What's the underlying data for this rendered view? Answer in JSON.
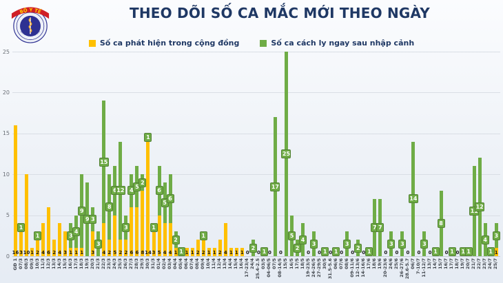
{
  "header": {
    "logo": {
      "banner_text": "BỘ Y TẾ",
      "ring_text": "MINISTRY OF HEALTH"
    }
  },
  "legend": [
    {
      "label": "Số ca phát hiện trong cộng đồng",
      "color": "#FFC000"
    },
    {
      "label": "Số ca cách ly ngay sau nhập cảnh",
      "color": "#6FAC46"
    }
  ],
  "chart_data": {
    "type": "bar",
    "stacked": true,
    "title": "THEO DÕI SỐ CA MẮC MỚI THEO NGÀY",
    "xlabel": "",
    "ylabel": "",
    "ylim": [
      0,
      25
    ],
    "yticks": [
      0,
      5,
      10,
      15,
      20,
      25
    ],
    "grid": true,
    "legend_position": "top",
    "categories": [
      "GĐ 1",
      "07/3",
      "08/3",
      "09/3",
      "10/3",
      "11/3",
      "12/3",
      "13/3",
      "14/3",
      "15/3",
      "16/3",
      "17/3",
      "18/3",
      "19/3",
      "20/3",
      "21/3",
      "22/3",
      "23/3",
      "24/3",
      "25/3",
      "26/3",
      "27/3",
      "28/3",
      "29/3",
      "30/3",
      "31/3",
      "01/4",
      "02/4",
      "03/4",
      "04/4",
      "05/4",
      "06/4",
      "07/4",
      "08/4",
      "09/4",
      "10/4",
      "11/4",
      "12/4",
      "13/4",
      "14/4",
      "15/4",
      "16/4",
      "17-23/4",
      "24/4",
      "25.4-2.5",
      "03/5",
      "04-06/5",
      "07/5",
      "08-14/5",
      "15/5",
      "16/5",
      "17/5",
      "18/5",
      "19-23/5",
      "24-26/5",
      "27-29/5",
      "30/5",
      "31.5-5.6",
      "06/6",
      "07/6",
      "08/6",
      "09-11/6",
      "12-13/6",
      "14-16/6",
      "17/6",
      "18/6",
      "19/6",
      "20-23/6",
      "24/6",
      "25/6",
      "26-27/6",
      "28.6-5.7",
      "06/7",
      "7-10/7",
      "11-12/7",
      "13/7",
      "14/7",
      "15/7",
      "16/7",
      "17/7",
      "18/7",
      "19/7",
      "20/7",
      "21/7",
      "22/7",
      "23/7",
      "24/7",
      "25/7"
    ],
    "series": [
      {
        "name": "Số ca phát hiện trong cộng đồng",
        "color": "#FFC000",
        "values": [
          16,
          3,
          10,
          1,
          2,
          4,
          6,
          2,
          4,
          3,
          1,
          1,
          1,
          0,
          3,
          0,
          4,
          2,
          5,
          2,
          2,
          6,
          6,
          8,
          14,
          3,
          5,
          4,
          4,
          1,
          0,
          1,
          1,
          2,
          2,
          1,
          1,
          2,
          4,
          1,
          1,
          1,
          0,
          0,
          0,
          0,
          0,
          0,
          0,
          0,
          0,
          0,
          0,
          0,
          0,
          0,
          0,
          0,
          0,
          0,
          0,
          0,
          0,
          0,
          0,
          0,
          0,
          0,
          0,
          0,
          0,
          0,
          0,
          0,
          0,
          0,
          0,
          0,
          0,
          0,
          0,
          0,
          0,
          0,
          0,
          0,
          0,
          1
        ]
      },
      {
        "name": "Số ca cách ly ngay sau nhập cảnh",
        "color": "#6FAC46",
        "values": [
          0,
          1,
          0,
          0,
          1,
          0,
          0,
          0,
          0,
          0,
          3,
          4,
          9,
          9,
          3,
          3,
          15,
          8,
          6,
          12,
          3,
          4,
          5,
          2,
          1,
          1,
          6,
          5,
          6,
          2,
          1,
          0,
          0,
          0,
          1,
          0,
          0,
          0,
          0,
          0,
          0,
          0,
          0,
          2,
          0,
          1,
          0,
          17,
          0,
          25,
          5,
          2,
          4,
          0,
          3,
          0,
          1,
          0,
          1,
          0,
          3,
          0,
          2,
          0,
          1,
          7,
          7,
          0,
          3,
          0,
          3,
          0,
          14,
          0,
          3,
          0,
          1,
          8,
          0,
          1,
          0,
          1,
          1,
          11,
          12,
          4,
          1,
          3
        ]
      }
    ]
  }
}
